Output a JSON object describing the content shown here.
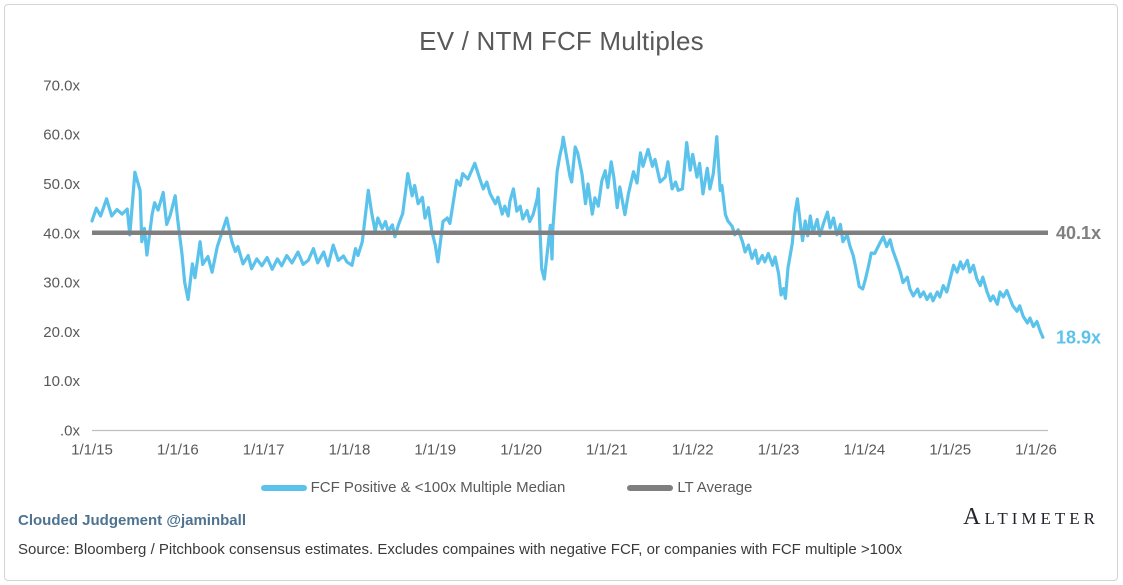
{
  "title": "EV / NTM FCF Multiples",
  "colors": {
    "series_blue": "#5bc3eb",
    "series_gray": "#7f7f7f",
    "axis_line": "#bfbfbf",
    "text_gray": "#595959",
    "handle_blue": "#4e7391"
  },
  "chart_data": {
    "type": "line",
    "title": "EV / NTM FCF Multiples",
    "xlabel": "",
    "ylabel": "",
    "grid": false,
    "legend_position": "bottom",
    "x_axis": {
      "tick_labels": [
        "1/1/15",
        "1/1/16",
        "1/1/17",
        "1/1/18",
        "1/1/19",
        "1/1/20",
        "1/1/21",
        "1/1/22",
        "1/1/23",
        "1/1/24",
        "1/1/25",
        "1/1/26"
      ],
      "unit": "years_since_2015"
    },
    "y_axis": {
      "ylim": [
        0,
        75
      ],
      "ticks": [
        {
          "value": 70,
          "label": "70.0x"
        },
        {
          "value": 60,
          "label": "60.0x"
        },
        {
          "value": 50,
          "label": "50.0x"
        },
        {
          "value": 40,
          "label": "40.0x"
        },
        {
          "value": 30,
          "label": "30.0x"
        },
        {
          "value": 20,
          "label": "20.0x"
        },
        {
          "value": 10,
          "label": "10.0x"
        },
        {
          "value": 0,
          "label": ".0x"
        }
      ]
    },
    "series": [
      {
        "name": "FCF Positive & <100x Multiple Median",
        "color": "#5bc3eb",
        "points": [
          [
            0,
            42.5
          ],
          [
            0.05,
            45.1
          ],
          [
            0.1,
            43.5
          ],
          [
            0.17,
            47
          ],
          [
            0.23,
            43.5
          ],
          [
            0.29,
            44.8
          ],
          [
            0.35,
            43.9
          ],
          [
            0.41,
            44.9
          ],
          [
            0.44,
            39.7
          ],
          [
            0.5,
            52.4
          ],
          [
            0.56,
            48.7
          ],
          [
            0.58,
            38.3
          ],
          [
            0.61,
            41
          ],
          [
            0.64,
            35.6
          ],
          [
            0.7,
            43.8
          ],
          [
            0.73,
            46.2
          ],
          [
            0.77,
            44.7
          ],
          [
            0.83,
            48.3
          ],
          [
            0.87,
            41.8
          ],
          [
            0.91,
            43.6
          ],
          [
            0.97,
            47.6
          ],
          [
            1,
            42.6
          ],
          [
            1.05,
            35.6
          ],
          [
            1.08,
            30
          ],
          [
            1.12,
            26.6
          ],
          [
            1.17,
            33.8
          ],
          [
            1.2,
            31
          ],
          [
            1.26,
            38.3
          ],
          [
            1.29,
            33.7
          ],
          [
            1.35,
            35.3
          ],
          [
            1.4,
            32.1
          ],
          [
            1.46,
            37.3
          ],
          [
            1.57,
            43.1
          ],
          [
            1.63,
            38.3
          ],
          [
            1.67,
            36.3
          ],
          [
            1.7,
            37.3
          ],
          [
            1.76,
            33.8
          ],
          [
            1.82,
            35.5
          ],
          [
            1.86,
            32.8
          ],
          [
            1.92,
            34.8
          ],
          [
            1.98,
            33.4
          ],
          [
            2.04,
            35.1
          ],
          [
            2.1,
            32.7
          ],
          [
            2.16,
            34.8
          ],
          [
            2.21,
            33.4
          ],
          [
            2.27,
            35.5
          ],
          [
            2.33,
            34
          ],
          [
            2.4,
            36.2
          ],
          [
            2.46,
            33.7
          ],
          [
            2.52,
            34.5
          ],
          [
            2.58,
            36.9
          ],
          [
            2.63,
            34
          ],
          [
            2.7,
            36.2
          ],
          [
            2.75,
            33.4
          ],
          [
            2.81,
            37.6
          ],
          [
            2.87,
            34.5
          ],
          [
            2.93,
            35.4
          ],
          [
            2.97,
            34.2
          ],
          [
            3.03,
            33.5
          ],
          [
            3.07,
            36.9
          ],
          [
            3.1,
            35.5
          ],
          [
            3.15,
            38.3
          ],
          [
            3.22,
            48.7
          ],
          [
            3.26,
            44
          ],
          [
            3.3,
            40.4
          ],
          [
            3.33,
            43.1
          ],
          [
            3.38,
            41
          ],
          [
            3.42,
            42.4
          ],
          [
            3.45,
            40.4
          ],
          [
            3.5,
            41.7
          ],
          [
            3.53,
            39.3
          ],
          [
            3.57,
            41.7
          ],
          [
            3.62,
            44
          ],
          [
            3.68,
            52.1
          ],
          [
            3.73,
            47.6
          ],
          [
            3.76,
            49.7
          ],
          [
            3.8,
            46
          ],
          [
            3.85,
            47.3
          ],
          [
            3.88,
            43.1
          ],
          [
            3.92,
            45.2
          ],
          [
            3.96,
            40.4
          ],
          [
            4,
            37.6
          ],
          [
            4.03,
            34.2
          ],
          [
            4.09,
            42.4
          ],
          [
            4.14,
            43.1
          ],
          [
            4.17,
            42
          ],
          [
            4.25,
            50.7
          ],
          [
            4.29,
            49.7
          ],
          [
            4.32,
            52.1
          ],
          [
            4.38,
            51
          ],
          [
            4.46,
            54.2
          ],
          [
            4.52,
            51
          ],
          [
            4.56,
            49
          ],
          [
            4.6,
            50.4
          ],
          [
            4.64,
            48
          ],
          [
            4.7,
            46
          ],
          [
            4.73,
            47.3
          ],
          [
            4.78,
            43.9
          ],
          [
            4.81,
            45.5
          ],
          [
            4.85,
            43.5
          ],
          [
            4.87,
            46.5
          ],
          [
            4.91,
            49
          ],
          [
            4.95,
            44.5
          ],
          [
            4.99,
            45.5
          ],
          [
            5.02,
            42.9
          ],
          [
            5.07,
            44.6
          ],
          [
            5.1,
            42.4
          ],
          [
            5.14,
            43.8
          ],
          [
            5.19,
            47.2
          ],
          [
            5.2,
            49
          ],
          [
            5.22,
            40.5
          ],
          [
            5.24,
            32.8
          ],
          [
            5.27,
            30.7
          ],
          [
            5.31,
            36.9
          ],
          [
            5.34,
            41.6
          ],
          [
            5.36,
            34.8
          ],
          [
            5.37,
            41.1
          ],
          [
            5.42,
            52.5
          ],
          [
            5.45,
            55.6
          ],
          [
            5.48,
            58
          ],
          [
            5.49,
            59.5
          ],
          [
            5.57,
            51.5
          ],
          [
            5.59,
            50.4
          ],
          [
            5.63,
            57.5
          ],
          [
            5.66,
            56.3
          ],
          [
            5.71,
            52
          ],
          [
            5.75,
            46
          ],
          [
            5.78,
            50
          ],
          [
            5.83,
            43.9
          ],
          [
            5.86,
            47.2
          ],
          [
            5.9,
            45.5
          ],
          [
            5.94,
            50.6
          ],
          [
            5.98,
            52.7
          ],
          [
            6.01,
            49.3
          ],
          [
            6.05,
            54.5
          ],
          [
            6.08,
            51.4
          ],
          [
            6.12,
            45.2
          ],
          [
            6.15,
            49.4
          ],
          [
            6.21,
            43.8
          ],
          [
            6.25,
            48
          ],
          [
            6.31,
            52.5
          ],
          [
            6.35,
            50.2
          ],
          [
            6.39,
            56.3
          ],
          [
            6.42,
            53.6
          ],
          [
            6.48,
            57
          ],
          [
            6.53,
            53.6
          ],
          [
            6.56,
            55
          ],
          [
            6.62,
            50.4
          ],
          [
            6.68,
            51.4
          ],
          [
            6.71,
            54.5
          ],
          [
            6.76,
            49
          ],
          [
            6.8,
            50.4
          ],
          [
            6.83,
            48.7
          ],
          [
            6.88,
            49
          ],
          [
            6.93,
            58.4
          ],
          [
            6.97,
            52.8
          ],
          [
            7,
            56
          ],
          [
            7.05,
            51.4
          ],
          [
            7.08,
            54.2
          ],
          [
            7.12,
            48
          ],
          [
            7.17,
            53.2
          ],
          [
            7.2,
            49
          ],
          [
            7.24,
            52.1
          ],
          [
            7.28,
            59.6
          ],
          [
            7.32,
            48.7
          ],
          [
            7.34,
            49.7
          ],
          [
            7.38,
            43.8
          ],
          [
            7.41,
            42.5
          ],
          [
            7.46,
            41.4
          ],
          [
            7.49,
            39.7
          ],
          [
            7.53,
            40.7
          ],
          [
            7.58,
            38.3
          ],
          [
            7.61,
            36.2
          ],
          [
            7.65,
            37.6
          ],
          [
            7.69,
            34.9
          ],
          [
            7.73,
            36.6
          ],
          [
            7.76,
            33.9
          ],
          [
            7.81,
            35.5
          ],
          [
            7.84,
            34.2
          ],
          [
            7.88,
            35.9
          ],
          [
            7.93,
            33.5
          ],
          [
            7.96,
            35.2
          ],
          [
            8,
            31.8
          ],
          [
            8.03,
            27.5
          ],
          [
            8.06,
            28.8
          ],
          [
            8.08,
            26.8
          ],
          [
            8.11,
            33
          ],
          [
            8.16,
            38
          ],
          [
            8.19,
            44
          ],
          [
            8.22,
            47
          ],
          [
            8.26,
            41
          ],
          [
            8.28,
            38.5
          ],
          [
            8.31,
            42.5
          ],
          [
            8.34,
            39.5
          ],
          [
            8.37,
            43.5
          ],
          [
            8.4,
            40
          ],
          [
            8.45,
            42.8
          ],
          [
            8.48,
            39.5
          ],
          [
            8.52,
            41.8
          ],
          [
            8.57,
            44.3
          ],
          [
            8.6,
            41.1
          ],
          [
            8.64,
            43.1
          ],
          [
            8.68,
            39.7
          ],
          [
            8.72,
            41.8
          ],
          [
            8.75,
            38.3
          ],
          [
            8.8,
            39.7
          ],
          [
            8.83,
            37.5
          ],
          [
            8.87,
            35.5
          ],
          [
            8.9,
            33
          ],
          [
            8.94,
            29.2
          ],
          [
            8.98,
            28.7
          ],
          [
            9.01,
            30.5
          ],
          [
            9.05,
            33.5
          ],
          [
            9.08,
            36
          ],
          [
            9.12,
            35.9
          ],
          [
            9.18,
            38
          ],
          [
            9.22,
            39.3
          ],
          [
            9.26,
            37.3
          ],
          [
            9.3,
            38.7
          ],
          [
            9.33,
            36.6
          ],
          [
            9.38,
            34.2
          ],
          [
            9.42,
            32.1
          ],
          [
            9.45,
            30
          ],
          [
            9.5,
            31.1
          ],
          [
            9.53,
            28.7
          ],
          [
            9.57,
            27.3
          ],
          [
            9.62,
            28.7
          ],
          [
            9.65,
            27.1
          ],
          [
            9.69,
            28.1
          ],
          [
            9.73,
            26.6
          ],
          [
            9.77,
            27.7
          ],
          [
            9.8,
            26.3
          ],
          [
            9.85,
            28.1
          ],
          [
            9.88,
            27.1
          ],
          [
            9.92,
            29.4
          ],
          [
            9.96,
            28.1
          ],
          [
            10,
            30.8
          ],
          [
            10.04,
            33.5
          ],
          [
            10.08,
            32.1
          ],
          [
            10.12,
            34.2
          ],
          [
            10.15,
            32.8
          ],
          [
            10.2,
            34.5
          ],
          [
            10.23,
            32.1
          ],
          [
            10.27,
            33.5
          ],
          [
            10.31,
            30.8
          ],
          [
            10.35,
            29.4
          ],
          [
            10.38,
            31.1
          ],
          [
            10.43,
            28.1
          ],
          [
            10.47,
            26.3
          ],
          [
            10.5,
            27.3
          ],
          [
            10.55,
            25.6
          ],
          [
            10.58,
            28.1
          ],
          [
            10.62,
            27.1
          ],
          [
            10.66,
            28.4
          ],
          [
            10.7,
            26.6
          ],
          [
            10.73,
            25.3
          ],
          [
            10.78,
            24.2
          ],
          [
            10.81,
            25.3
          ],
          [
            10.85,
            23.2
          ],
          [
            10.9,
            21.8
          ],
          [
            10.93,
            22.8
          ],
          [
            10.97,
            21.1
          ],
          [
            11.01,
            22.1
          ],
          [
            11.05,
            20.1
          ],
          [
            11.08,
            18.9
          ]
        ]
      },
      {
        "name": "LT Average",
        "color": "#7f7f7f",
        "value": 40.1
      }
    ],
    "annotations": [
      {
        "text": "40.1x",
        "value": 40.1,
        "color": "#7f7f7f"
      },
      {
        "text": "18.9x",
        "value": 18.9,
        "color": "#5bc3eb"
      }
    ]
  },
  "footer": {
    "handle": "Clouded Judgement @jaminball",
    "source": "Source: Bloomberg / Pitchbook consensus estimates. Excludes compaines with negative FCF, or companies with FCF multiple >100x",
    "logo": "ALTIMETER"
  }
}
